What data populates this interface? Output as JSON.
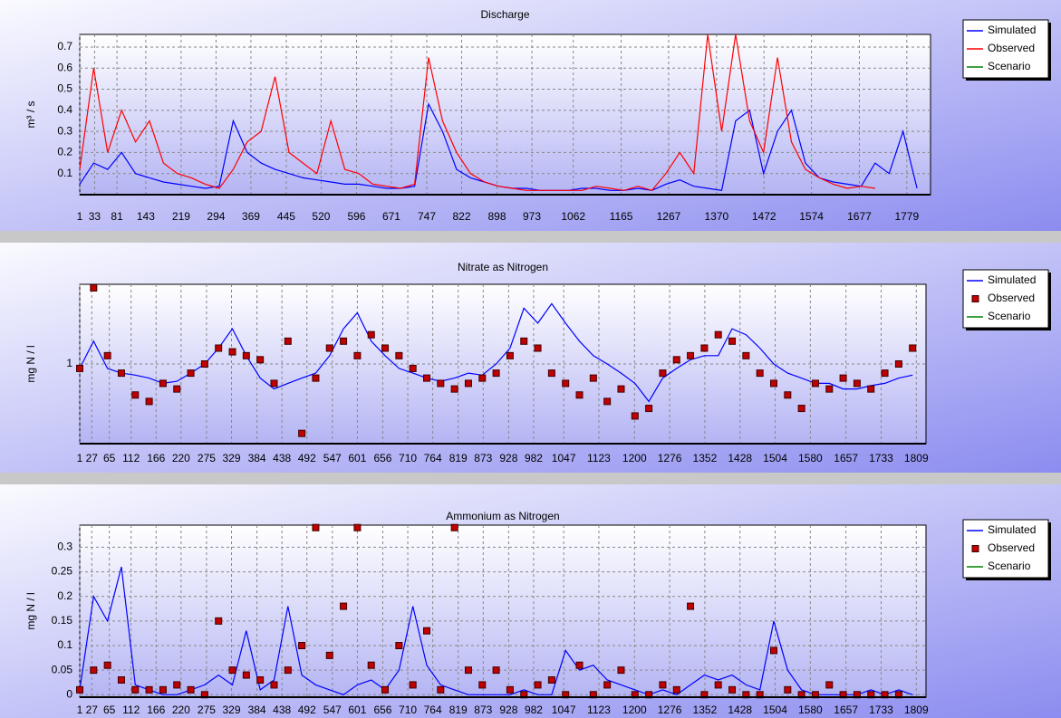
{
  "chart_data": [
    {
      "type": "line",
      "title": "Discharge",
      "y_label": "m³ / s",
      "log_scale": false,
      "grid": true,
      "x": [
        1,
        31,
        61,
        91,
        121,
        151,
        181,
        211,
        241,
        271,
        301,
        331,
        361,
        391,
        421,
        451,
        481,
        511,
        541,
        571,
        601,
        631,
        661,
        691,
        721,
        751,
        781,
        811,
        841,
        871,
        901,
        931,
        961,
        991,
        1021,
        1051,
        1081,
        1111,
        1141,
        1171,
        1201,
        1231,
        1261,
        1291,
        1321,
        1351,
        1381,
        1411,
        1441,
        1471,
        1501,
        1531,
        1561,
        1591,
        1621,
        1651,
        1681,
        1711,
        1741,
        1771,
        1801
      ],
      "xlim": [
        1,
        1830
      ],
      "xticks": [
        1,
        33,
        81,
        143,
        219,
        294,
        369,
        445,
        520,
        596,
        671,
        747,
        822,
        898,
        973,
        1062,
        1165,
        1267,
        1370,
        1472,
        1574,
        1677,
        1779
      ],
      "ylim": [
        0,
        0.76
      ],
      "yticks": [
        0.1,
        0.2,
        0.3,
        0.4,
        0.5,
        0.6,
        0.7
      ],
      "series": [
        {
          "name": "Simulated",
          "color": "#0000ff",
          "style": "line",
          "values": [
            0.05,
            0.15,
            0.12,
            0.2,
            0.1,
            0.08,
            0.06,
            0.05,
            0.04,
            0.03,
            0.04,
            0.35,
            0.2,
            0.15,
            0.12,
            0.1,
            0.08,
            0.07,
            0.06,
            0.05,
            0.05,
            0.04,
            0.03,
            0.03,
            0.04,
            0.43,
            0.3,
            0.12,
            0.08,
            0.06,
            0.04,
            0.03,
            0.03,
            0.02,
            0.02,
            0.02,
            0.03,
            0.03,
            0.02,
            0.02,
            0.03,
            0.02,
            0.05,
            0.07,
            0.04,
            0.03,
            0.02,
            0.35,
            0.4,
            0.1,
            0.3,
            0.4,
            0.15,
            0.08,
            0.06,
            0.05,
            0.04,
            0.15,
            0.1,
            0.3,
            0.03
          ]
        },
        {
          "name": "Observed",
          "color": "#ff0000",
          "style": "line",
          "values": [
            0.12,
            0.6,
            0.2,
            0.4,
            0.25,
            0.35,
            0.15,
            0.1,
            0.08,
            0.05,
            0.03,
            0.12,
            0.25,
            0.3,
            0.56,
            0.2,
            0.15,
            0.1,
            0.35,
            0.12,
            0.1,
            0.05,
            0.04,
            0.03,
            0.05,
            0.65,
            0.35,
            0.2,
            0.1,
            0.06,
            0.04,
            0.03,
            0.02,
            0.02,
            0.02,
            0.02,
            0.02,
            0.04,
            0.03,
            0.02,
            0.04,
            0.02,
            0.1,
            0.2,
            0.1,
            0.76,
            0.3,
            0.76,
            0.35,
            0.2,
            0.65,
            0.25,
            0.12,
            0.08,
            0.05,
            0.03,
            0.04,
            0.03,
            null,
            null,
            null
          ]
        },
        {
          "name": "Scenario",
          "color": "#008000",
          "style": "line",
          "values": [
            null,
            null,
            null,
            null,
            null,
            null,
            null,
            null,
            null,
            null,
            null,
            null,
            null,
            null,
            null,
            null,
            null,
            null,
            null,
            null,
            null,
            null,
            null,
            null,
            null,
            null,
            null,
            null,
            null,
            null,
            null,
            null,
            null,
            null,
            null,
            null,
            null,
            null,
            null,
            null,
            null,
            null,
            null,
            null,
            null,
            null,
            null,
            null,
            null,
            null,
            null,
            null,
            null,
            null,
            null,
            null,
            null,
            null,
            null,
            null,
            null
          ]
        }
      ]
    },
    {
      "type": "line",
      "title": "Nitrate as Nitrogen",
      "y_label": "mg N / l",
      "log_scale": true,
      "grid": true,
      "x": [
        1,
        31,
        61,
        91,
        121,
        151,
        181,
        211,
        241,
        271,
        301,
        331,
        361,
        391,
        421,
        451,
        481,
        511,
        541,
        571,
        601,
        631,
        661,
        691,
        721,
        751,
        781,
        811,
        841,
        871,
        901,
        931,
        961,
        991,
        1021,
        1051,
        1081,
        1111,
        1141,
        1171,
        1201,
        1231,
        1261,
        1291,
        1321,
        1351,
        1381,
        1411,
        1441,
        1471,
        1501,
        1531,
        1561,
        1591,
        1621,
        1651,
        1681,
        1711,
        1741,
        1771,
        1801
      ],
      "xlim": [
        1,
        1830
      ],
      "xticks": [
        1,
        27,
        65,
        112,
        166,
        220,
        275,
        329,
        384,
        438,
        492,
        547,
        601,
        656,
        710,
        764,
        819,
        873,
        928,
        982,
        1047,
        1123,
        1200,
        1276,
        1352,
        1428,
        1504,
        1580,
        1657,
        1733,
        1809
      ],
      "ylim": [
        0.4,
        2.5
      ],
      "yticks": [
        1
      ],
      "series": [
        {
          "name": "Simulated",
          "color": "#0000ff",
          "style": "line",
          "values": [
            0.95,
            1.3,
            0.95,
            0.9,
            0.88,
            0.85,
            0.8,
            0.82,
            0.9,
            1.0,
            1.2,
            1.5,
            1.1,
            0.85,
            0.75,
            0.8,
            0.85,
            0.9,
            1.1,
            1.5,
            1.8,
            1.3,
            1.1,
            0.95,
            0.9,
            0.85,
            0.82,
            0.85,
            0.9,
            0.88,
            1.0,
            1.2,
            1.9,
            1.6,
            2.0,
            1.6,
            1.3,
            1.1,
            1.0,
            0.9,
            0.8,
            0.65,
            0.85,
            0.95,
            1.05,
            1.1,
            1.1,
            1.5,
            1.4,
            1.2,
            1.0,
            0.9,
            0.85,
            0.8,
            0.8,
            0.75,
            0.75,
            0.78,
            0.8,
            0.85,
            0.88
          ]
        },
        {
          "name": "Observed",
          "color": "#c00000",
          "style": "markers",
          "values": [
            0.95,
            2.4,
            1.1,
            0.9,
            0.7,
            0.65,
            0.8,
            0.75,
            0.9,
            1.0,
            1.2,
            1.15,
            1.1,
            1.05,
            0.8,
            1.3,
            0.45,
            0.85,
            1.2,
            1.3,
            1.1,
            1.4,
            1.2,
            1.1,
            0.95,
            0.85,
            0.8,
            0.75,
            0.8,
            0.85,
            0.9,
            1.1,
            1.3,
            1.2,
            0.9,
            0.8,
            0.7,
            0.85,
            0.65,
            0.75,
            0.55,
            0.6,
            0.9,
            1.05,
            1.1,
            1.2,
            1.4,
            1.3,
            1.1,
            0.9,
            0.8,
            0.7,
            0.6,
            0.8,
            0.75,
            0.85,
            0.8,
            0.75,
            0.9,
            1.0,
            1.2
          ]
        },
        {
          "name": "Scenario",
          "color": "#008000",
          "style": "line",
          "values": [
            null,
            null,
            null,
            null,
            null,
            null,
            null,
            null,
            null,
            null,
            null,
            null,
            null,
            null,
            null,
            null,
            null,
            null,
            null,
            null,
            null,
            null,
            null,
            null,
            null,
            null,
            null,
            null,
            null,
            null,
            null,
            null,
            null,
            null,
            null,
            null,
            null,
            null,
            null,
            null,
            null,
            null,
            null,
            null,
            null,
            null,
            null,
            null,
            null,
            null,
            null,
            null,
            null,
            null,
            null,
            null,
            null,
            null,
            null,
            null,
            null
          ]
        }
      ]
    },
    {
      "type": "line",
      "title": "Ammonium as Nitrogen",
      "y_label": "mg N / l",
      "log_scale": false,
      "grid": true,
      "x": [
        1,
        31,
        61,
        91,
        121,
        151,
        181,
        211,
        241,
        271,
        301,
        331,
        361,
        391,
        421,
        451,
        481,
        511,
        541,
        571,
        601,
        631,
        661,
        691,
        721,
        751,
        781,
        811,
        841,
        871,
        901,
        931,
        961,
        991,
        1021,
        1051,
        1081,
        1111,
        1141,
        1171,
        1201,
        1231,
        1261,
        1291,
        1321,
        1351,
        1381,
        1411,
        1441,
        1471,
        1501,
        1531,
        1561,
        1591,
        1621,
        1651,
        1681,
        1711,
        1741,
        1771,
        1801
      ],
      "xlim": [
        1,
        1830
      ],
      "xticks": [
        1,
        27,
        65,
        112,
        166,
        220,
        275,
        329,
        384,
        438,
        492,
        547,
        601,
        656,
        710,
        764,
        819,
        873,
        928,
        982,
        1047,
        1123,
        1200,
        1276,
        1352,
        1428,
        1504,
        1580,
        1657,
        1733,
        1809
      ],
      "ylim": [
        -0.005,
        0.345
      ],
      "yticks": [
        0,
        0.05,
        0.1,
        0.15,
        0.2,
        0.25,
        0.3
      ],
      "series": [
        {
          "name": "Simulated",
          "color": "#0000ff",
          "style": "line",
          "values": [
            0.01,
            0.2,
            0.15,
            0.26,
            0.02,
            0.01,
            0.0,
            0.0,
            0.01,
            0.02,
            0.04,
            0.02,
            0.13,
            0.01,
            0.03,
            0.18,
            0.04,
            0.02,
            0.01,
            0.0,
            0.02,
            0.03,
            0.01,
            0.05,
            0.18,
            0.06,
            0.02,
            0.01,
            0.0,
            0.0,
            0.0,
            0.0,
            0.01,
            0.0,
            0.0,
            0.09,
            0.05,
            0.06,
            0.03,
            0.02,
            0.01,
            0.0,
            0.01,
            0.0,
            0.02,
            0.04,
            0.03,
            0.04,
            0.02,
            0.01,
            0.15,
            0.05,
            0.01,
            0.0,
            0.0,
            0.0,
            0.0,
            0.01,
            0.0,
            0.01,
            0.0
          ]
        },
        {
          "name": "Observed",
          "color": "#c00000",
          "style": "markers",
          "values": [
            0.01,
            0.05,
            0.06,
            0.03,
            0.01,
            0.01,
            0.01,
            0.02,
            0.01,
            0.0,
            0.15,
            0.05,
            0.04,
            0.03,
            0.02,
            0.05,
            0.1,
            0.34,
            0.08,
            0.18,
            0.34,
            0.06,
            0.01,
            0.1,
            0.02,
            0.13,
            0.01,
            0.34,
            0.05,
            0.02,
            0.05,
            0.01,
            0.0,
            0.02,
            0.03,
            0.0,
            0.06,
            0.0,
            0.02,
            0.05,
            0.0,
            0.0,
            0.02,
            0.01,
            0.18,
            0.0,
            0.02,
            0.01,
            0.0,
            0.0,
            0.09,
            0.01,
            0.0,
            0.0,
            0.02,
            0.0,
            0.0,
            0.0,
            0.0,
            0.0,
            null
          ]
        },
        {
          "name": "Scenario",
          "color": "#008000",
          "style": "line",
          "values": [
            null,
            null,
            null,
            null,
            null,
            null,
            null,
            null,
            null,
            null,
            null,
            null,
            null,
            null,
            null,
            null,
            null,
            null,
            null,
            null,
            null,
            null,
            null,
            null,
            null,
            null,
            null,
            null,
            null,
            null,
            null,
            null,
            null,
            null,
            null,
            null,
            null,
            null,
            null,
            null,
            null,
            null,
            null,
            null,
            null,
            null,
            null,
            null,
            null,
            null,
            null,
            null,
            null,
            null,
            null,
            null,
            null,
            null,
            null,
            null,
            null
          ]
        }
      ]
    }
  ]
}
